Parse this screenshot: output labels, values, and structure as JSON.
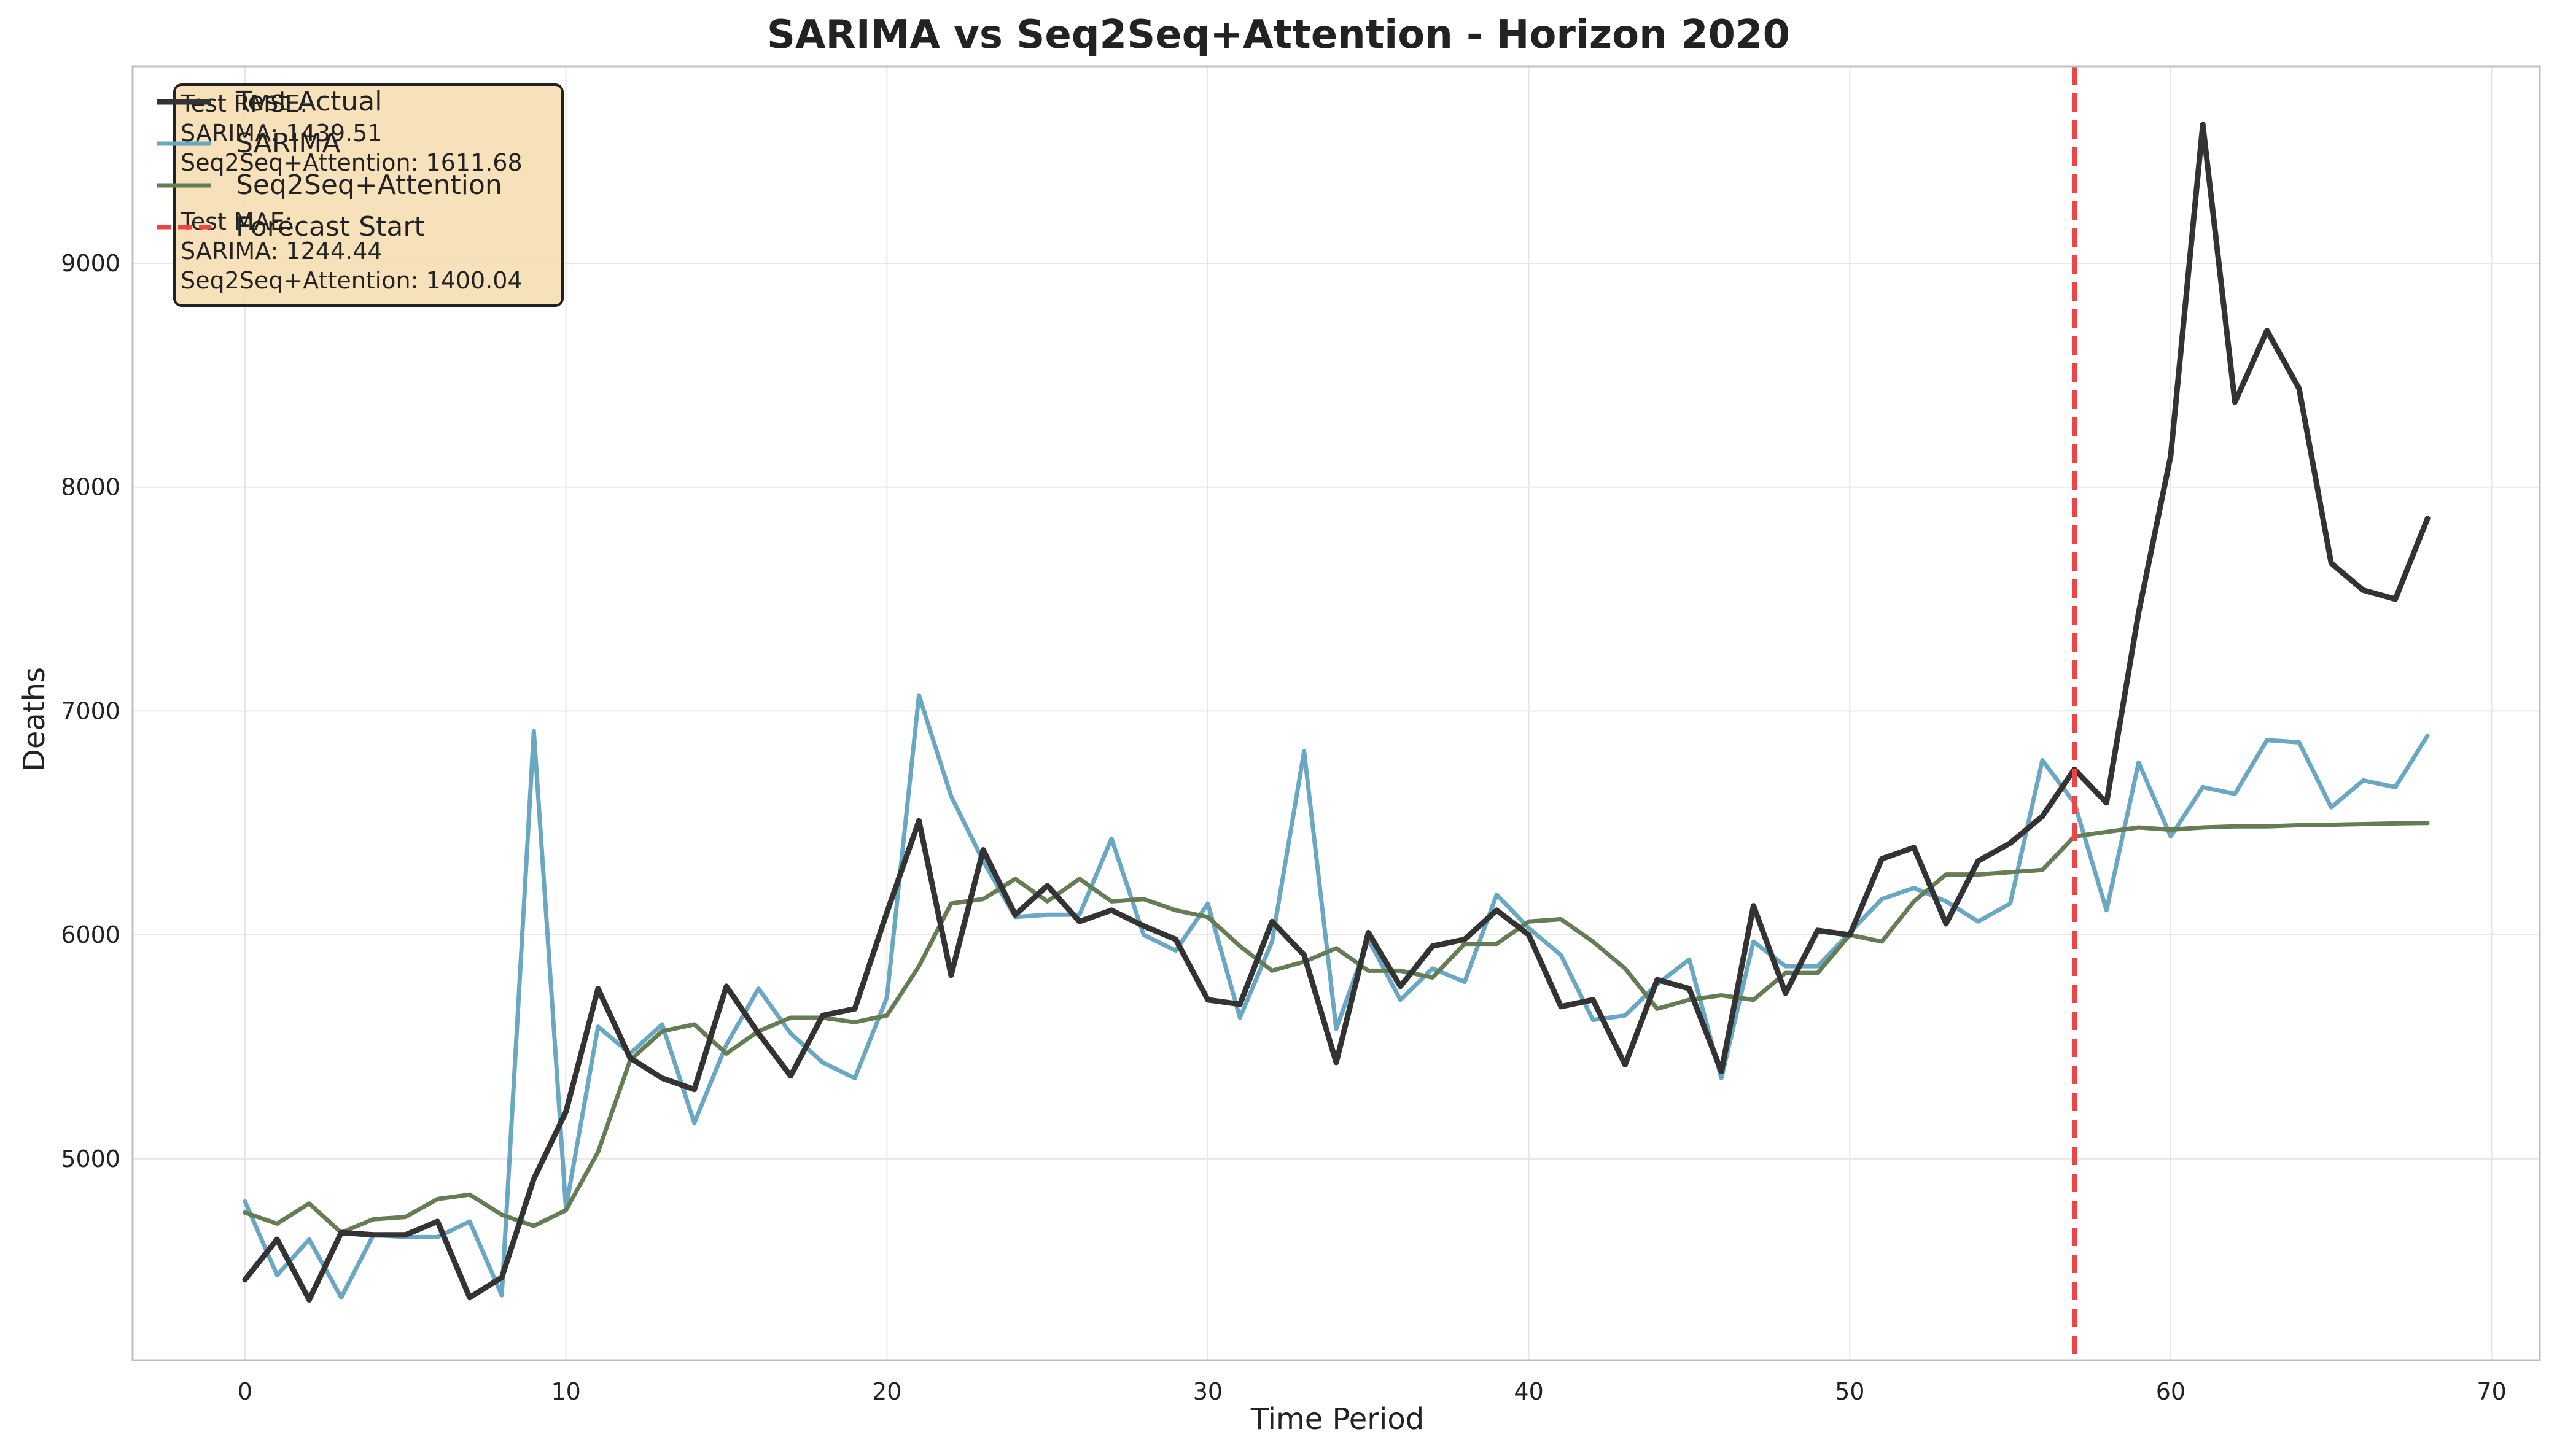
{
  "chart_data": {
    "type": "line",
    "title": "SARIMA vs Seq2Seq+Attention - Horizon 2020",
    "xlabel": "Time Period",
    "ylabel": "Deaths",
    "xlim": [
      -3.5,
      71.5
    ],
    "ylim": [
      4100,
      9880
    ],
    "xticks": [
      0,
      10,
      20,
      30,
      40,
      50,
      60,
      70
    ],
    "yticks": [
      5000,
      6000,
      7000,
      8000,
      9000
    ],
    "grid": true,
    "legend_position": "top-left",
    "forecast_start": 57,
    "colors": {
      "actual": "#333333",
      "sarima": "#6aa7c3",
      "seq2seq": "#667c55",
      "forecast": "#ee4444",
      "metrics_box_fill": "#f5deb3",
      "metrics_box_edge": "#222222"
    },
    "legend": {
      "actual": "Test Actual",
      "sarima": "SARIMA",
      "seq2seq": "Seq2Seq+Attention",
      "forecast": "Forecast Start"
    },
    "metrics_text": [
      "Test RMSE:",
      "SARIMA: 1439.51",
      "Seq2Seq+Attention: 1611.68",
      "",
      "Test MAE:",
      "SARIMA: 1244.44",
      "Seq2Seq+Attention: 1400.04"
    ],
    "x": [
      0,
      1,
      2,
      3,
      4,
      5,
      6,
      7,
      8,
      9,
      10,
      11,
      12,
      13,
      14,
      15,
      16,
      17,
      18,
      19,
      20,
      21,
      22,
      23,
      24,
      25,
      26,
      27,
      28,
      29,
      30,
      31,
      32,
      33,
      34,
      35,
      36,
      37,
      38,
      39,
      40,
      41,
      42,
      43,
      44,
      45,
      46,
      47,
      48,
      49,
      50,
      51,
      52,
      53,
      54,
      55,
      56,
      57,
      58,
      59,
      60,
      61,
      62,
      63,
      64,
      65,
      66,
      67,
      68
    ],
    "series": [
      {
        "key": "actual",
        "name": "Test Actual",
        "values": [
          4460,
          4640,
          4370,
          4670,
          4660,
          4660,
          4720,
          4380,
          4470,
          4910,
          5210,
          5760,
          5450,
          5360,
          5310,
          5770,
          5560,
          5370,
          5640,
          5670,
          6100,
          6510,
          5820,
          6380,
          6090,
          6220,
          6060,
          6110,
          6040,
          5980,
          5710,
          5690,
          6060,
          5910,
          5430,
          6010,
          5770,
          5950,
          5980,
          6110,
          6000,
          5680,
          5710,
          5420,
          5800,
          5760,
          5390,
          6130,
          5740,
          6020,
          6000,
          6340,
          6390,
          6050,
          6330,
          6410,
          6530,
          6740,
          6590,
          7440,
          8140,
          9620,
          8380,
          8700,
          8440,
          7660,
          7540,
          7500,
          7860
        ]
      },
      {
        "key": "sarima",
        "name": "SARIMA",
        "values": [
          4810,
          4480,
          4640,
          4380,
          4660,
          4650,
          4650,
          4720,
          4390,
          6910,
          4780,
          5590,
          5470,
          5600,
          5160,
          5510,
          5760,
          5560,
          5430,
          5360,
          5720,
          7070,
          6620,
          6330,
          6080,
          6090,
          6090,
          6430,
          6000,
          5930,
          6140,
          5630,
          5970,
          6820,
          5580,
          5980,
          5710,
          5850,
          5790,
          6180,
          6030,
          5910,
          5620,
          5640,
          5780,
          5890,
          5360,
          5970,
          5860,
          5860,
          6010,
          6160,
          6210,
          6150,
          6060,
          6140,
          6780,
          6590,
          6110,
          6770,
          6440,
          6660,
          6630,
          6870,
          6860,
          6570,
          6690,
          6660,
          6890
        ]
      },
      {
        "key": "seq2seq",
        "name": "Seq2Seq+Attention",
        "values": [
          4760,
          4710,
          4800,
          4670,
          4730,
          4740,
          4820,
          4840,
          4750,
          4700,
          4770,
          5030,
          5440,
          5570,
          5600,
          5470,
          5570,
          5630,
          5630,
          5610,
          5640,
          5860,
          6140,
          6160,
          6250,
          6150,
          6250,
          6150,
          6160,
          6110,
          6080,
          5950,
          5840,
          5880,
          5940,
          5840,
          5840,
          5810,
          5960,
          5960,
          6060,
          6070,
          5970,
          5850,
          5670,
          5710,
          5730,
          5710,
          5830,
          5830,
          6000,
          5970,
          6150,
          6270,
          6270,
          6280,
          6290,
          6440,
          6460,
          6480,
          6470,
          6480,
          6485,
          6485,
          6490,
          6492,
          6495,
          6498,
          6500
        ]
      }
    ]
  }
}
